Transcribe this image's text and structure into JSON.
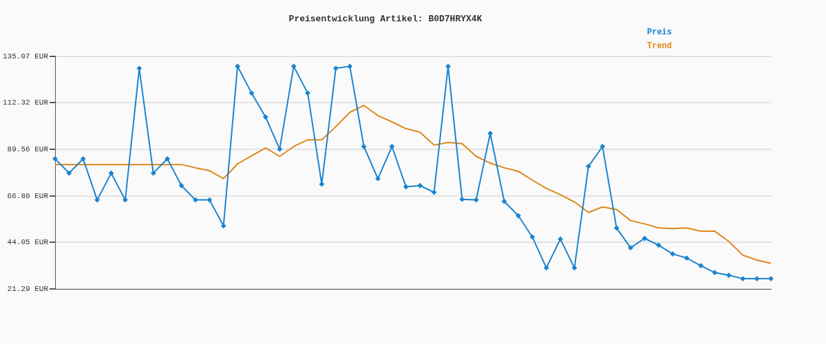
{
  "chart_data": {
    "type": "line",
    "title": "Preisentwicklung Artikel: B0D7HRYX4K",
    "categories": [
      null,
      null,
      null,
      null,
      null,
      null,
      null,
      null,
      null,
      null,
      null,
      null,
      null,
      null,
      null,
      null,
      null,
      null,
      null,
      null,
      null,
      null,
      null,
      null,
      null,
      null,
      null,
      null,
      null,
      null,
      null,
      null,
      null,
      null,
      null,
      null,
      null,
      null,
      null,
      null,
      null,
      null,
      null,
      null,
      null,
      null,
      null,
      null,
      null,
      null,
      null,
      null
    ],
    "series": [
      {
        "name": "Preis",
        "color": "#1a84d0",
        "marker": "diamond",
        "values": [
          84.9,
          77.9,
          84.9,
          64.8,
          77.9,
          64.8,
          129.1,
          77.9,
          84.9,
          71.8,
          64.8,
          64.8,
          52.1,
          130.1,
          117.0,
          105.3,
          89.6,
          130.1,
          117.0,
          72.5,
          129.1,
          130.1,
          90.9,
          75.2,
          90.9,
          71.2,
          71.8,
          68.5,
          130.1,
          65.1,
          64.8,
          97.3,
          64.1,
          57.1,
          46.7,
          31.6,
          45.7,
          31.6,
          81.2,
          90.9,
          51.1,
          41.4,
          46.0,
          42.7,
          38.4,
          36.4,
          32.7,
          29.3,
          28.0,
          26.3,
          26.3,
          26.3
        ]
      },
      {
        "name": "Trend",
        "color": "#e0861a",
        "marker": "none",
        "values": [
          82.1,
          82.1,
          82.1,
          82.1,
          82.1,
          82.1,
          82.1,
          82.1,
          82.1,
          82.1,
          80.5,
          79.1,
          75.2,
          82.4,
          86.4,
          90.2,
          86.1,
          90.9,
          94.2,
          94.2,
          100.6,
          107.6,
          111.0,
          106.0,
          103.0,
          99.6,
          97.9,
          91.6,
          92.9,
          92.3,
          86.1,
          82.8,
          80.5,
          78.8,
          74.5,
          70.4,
          67.4,
          63.8,
          58.7,
          61.4,
          60.1,
          54.7,
          53.1,
          51.1,
          50.8,
          51.1,
          49.5,
          49.5,
          44.5,
          37.8,
          35.4,
          33.8
        ]
      }
    ],
    "ylim": [
      21.29,
      135.07
    ],
    "yticks": [
      {
        "value": 21.29,
        "label": "21.29 EUR"
      },
      {
        "value": 44.05,
        "label": "44.05 EUR"
      },
      {
        "value": 66.8,
        "label": "66.80 EUR"
      },
      {
        "value": 89.56,
        "label": "89.56 EUR"
      },
      {
        "value": 112.32,
        "label": "112.32 EUR"
      },
      {
        "value": 135.07,
        "label": "135.07 EUR"
      }
    ],
    "grid": "y",
    "legend": "top right",
    "line_style": "solid"
  }
}
